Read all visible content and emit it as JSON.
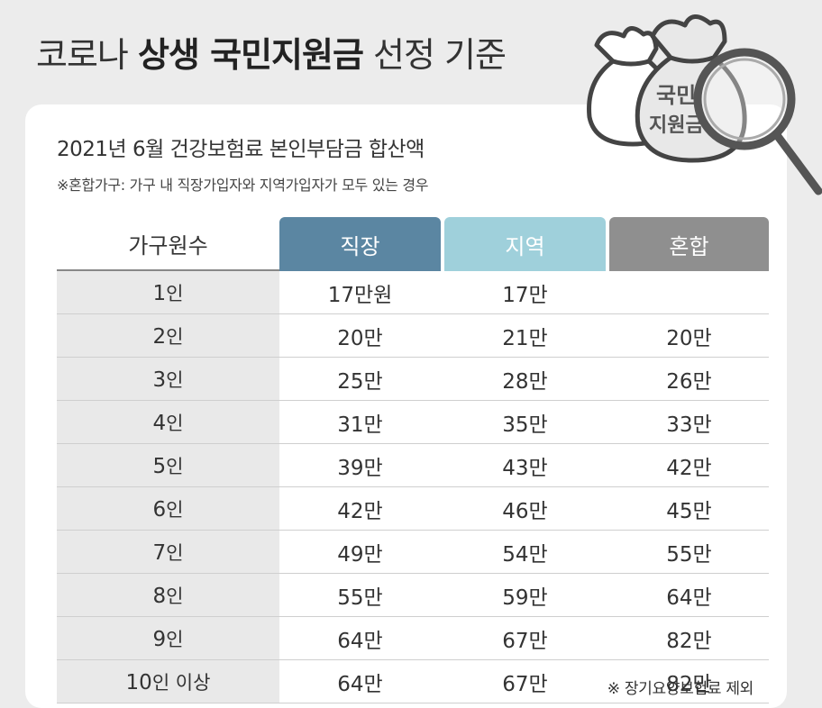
{
  "title": {
    "part1": "코로나 ",
    "bold": "상생 국민지원금",
    "part2": " 선정 기준"
  },
  "subtitle": "2021년 6월 건강보험료 본인부담금 합산액",
  "note": "※혼합가구: 가구 내 직장가입자와 지역가입자가 모두 있는 경우",
  "illustration": {
    "line1": "국민",
    "line2": "지원금"
  },
  "table": {
    "header": {
      "rowhead": "가구원수",
      "col1": "직장",
      "col2": "지역",
      "col3": "혼합"
    },
    "rows": [
      {
        "num": "1",
        "unit": "인",
        "col1": "17만원",
        "col2": "17만",
        "col3": ""
      },
      {
        "num": "2",
        "unit": "인",
        "col1": "20만",
        "col2": "21만",
        "col3": "20만"
      },
      {
        "num": "3",
        "unit": "인",
        "col1": "25만",
        "col2": "28만",
        "col3": "26만"
      },
      {
        "num": "4",
        "unit": "인",
        "col1": "31만",
        "col2": "35만",
        "col3": "33만"
      },
      {
        "num": "5",
        "unit": "인",
        "col1": "39만",
        "col2": "43만",
        "col3": "42만"
      },
      {
        "num": "6",
        "unit": "인",
        "col1": "42만",
        "col2": "46만",
        "col3": "45만"
      },
      {
        "num": "7",
        "unit": "인",
        "col1": "49만",
        "col2": "54만",
        "col3": "55만"
      },
      {
        "num": "8",
        "unit": "인",
        "col1": "55만",
        "col2": "59만",
        "col3": "64만"
      },
      {
        "num": "9",
        "unit": "인",
        "col1": "64만",
        "col2": "67만",
        "col3": "82만"
      },
      {
        "num": "10",
        "unit": "인 이상",
        "col1": "64만",
        "col2": "67만",
        "col3": "82만"
      }
    ]
  },
  "footnote": "※ 장기요양보험료 제외",
  "colors": {
    "col1": "#5b86a2",
    "col2": "#9fd0db",
    "col3": "#8f8f8f",
    "background": "#ececec"
  }
}
